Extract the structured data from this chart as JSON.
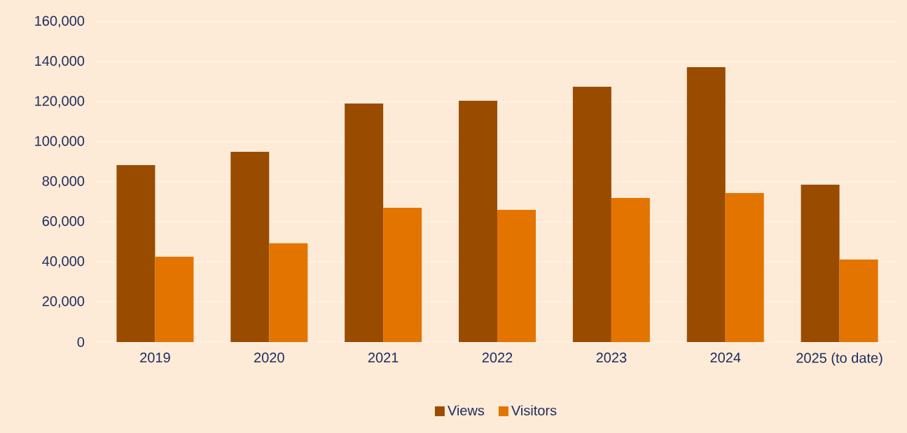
{
  "chart_data": {
    "type": "bar",
    "categories": [
      "2019",
      "2020",
      "2021",
      "2022",
      "2023",
      "2024",
      "2025 (to date)"
    ],
    "series": [
      {
        "name": "Views",
        "color": "#994c00",
        "values": [
          88400,
          95000,
          119100,
          120500,
          127500,
          137300,
          78600
        ]
      },
      {
        "name": "Visitors",
        "color": "#e37400",
        "values": [
          42600,
          49300,
          67100,
          66000,
          72000,
          74400,
          41200
        ]
      }
    ],
    "ylim": [
      0,
      160000
    ],
    "yticks": [
      0,
      {
        "value": 20000,
        "label": "20,000"
      },
      {
        "value": 40000,
        "label": "40,000"
      },
      {
        "value": 60000,
        "label": "60,000"
      },
      {
        "value": 80000,
        "label": "80,000"
      },
      {
        "value": 100000,
        "label": "100,000"
      },
      {
        "value": 120000,
        "label": "120,000"
      },
      {
        "value": 140000,
        "label": "140,000"
      },
      {
        "value": 160000,
        "label": "160,000"
      }
    ],
    "grid": "y",
    "legend": "bottom"
  }
}
